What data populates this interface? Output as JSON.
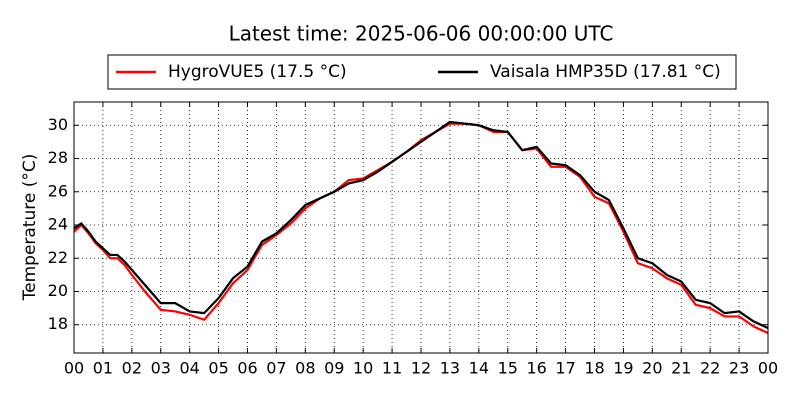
{
  "chart_data": {
    "type": "line",
    "title": "Latest time: 2025-06-06 00:00:00 UTC",
    "ylabel": "Temperature (°C)",
    "x": [
      0,
      0.25,
      0.5,
      0.75,
      1,
      1.25,
      1.5,
      1.75,
      2,
      2.5,
      3,
      3.5,
      4,
      4.5,
      5,
      5.5,
      6,
      6.5,
      7,
      7.5,
      8,
      8.5,
      9,
      9.5,
      10,
      10.5,
      11,
      11.5,
      12,
      12.5,
      13,
      13.5,
      14,
      14.5,
      15,
      15.5,
      16,
      16.5,
      17,
      17.5,
      18,
      18.5,
      19,
      19.5,
      20,
      20.5,
      21,
      21.5,
      22,
      22.5,
      23,
      23.5,
      24
    ],
    "series": [
      {
        "name": "HygroVUE5 (17.5 °C)",
        "color": "#ff0000",
        "values": [
          23.6,
          24.0,
          23.5,
          22.9,
          22.5,
          22.0,
          22.0,
          21.6,
          21.0,
          19.9,
          18.9,
          18.8,
          18.6,
          18.3,
          19.3,
          20.5,
          21.3,
          22.8,
          23.4,
          24.1,
          25.0,
          25.6,
          26.0,
          26.7,
          26.8,
          27.3,
          27.8,
          28.4,
          29.1,
          29.6,
          30.1,
          30.1,
          30.0,
          29.6,
          29.6,
          28.5,
          28.6,
          27.5,
          27.5,
          26.9,
          25.7,
          25.3,
          23.6,
          21.7,
          21.4,
          20.8,
          20.4,
          19.2,
          19.0,
          18.5,
          18.5,
          17.9,
          17.5
        ]
      },
      {
        "name": "Vaisala HMP35D (17.81 °C)",
        "color": "#000000",
        "values": [
          23.8,
          24.1,
          23.6,
          23.0,
          22.6,
          22.2,
          22.2,
          21.8,
          21.3,
          20.3,
          19.3,
          19.3,
          18.8,
          18.7,
          19.6,
          20.8,
          21.5,
          23.0,
          23.5,
          24.3,
          25.2,
          25.6,
          26.0,
          26.5,
          26.7,
          27.2,
          27.8,
          28.4,
          29.0,
          29.6,
          30.2,
          30.1,
          30.0,
          29.7,
          29.6,
          28.5,
          28.7,
          27.7,
          27.6,
          27.0,
          26.0,
          25.5,
          23.8,
          22.0,
          21.7,
          21.0,
          20.6,
          19.5,
          19.3,
          18.7,
          18.8,
          18.2,
          17.8
        ]
      }
    ],
    "xlim": [
      0,
      24
    ],
    "xticks": [
      {
        "value": 0,
        "label": "00"
      },
      {
        "value": 1,
        "label": "01"
      },
      {
        "value": 2,
        "label": "02"
      },
      {
        "value": 3,
        "label": "03"
      },
      {
        "value": 4,
        "label": "04"
      },
      {
        "value": 5,
        "label": "05"
      },
      {
        "value": 6,
        "label": "06"
      },
      {
        "value": 7,
        "label": "07"
      },
      {
        "value": 8,
        "label": "08"
      },
      {
        "value": 9,
        "label": "09"
      },
      {
        "value": 10,
        "label": "10"
      },
      {
        "value": 11,
        "label": "11"
      },
      {
        "value": 12,
        "label": "12"
      },
      {
        "value": 13,
        "label": "13"
      },
      {
        "value": 14,
        "label": "14"
      },
      {
        "value": 15,
        "label": "15"
      },
      {
        "value": 16,
        "label": "16"
      },
      {
        "value": 17,
        "label": "17"
      },
      {
        "value": 18,
        "label": "18"
      },
      {
        "value": 19,
        "label": "19"
      },
      {
        "value": 20,
        "label": "20"
      },
      {
        "value": 21,
        "label": "21"
      },
      {
        "value": 22,
        "label": "22"
      },
      {
        "value": 23,
        "label": "23"
      },
      {
        "value": 24,
        "label": "00"
      }
    ],
    "ylim": [
      16.3,
      31.4
    ],
    "yticks": [
      18,
      20,
      22,
      24,
      26,
      28,
      30
    ],
    "grid": true,
    "legend": "top"
  }
}
